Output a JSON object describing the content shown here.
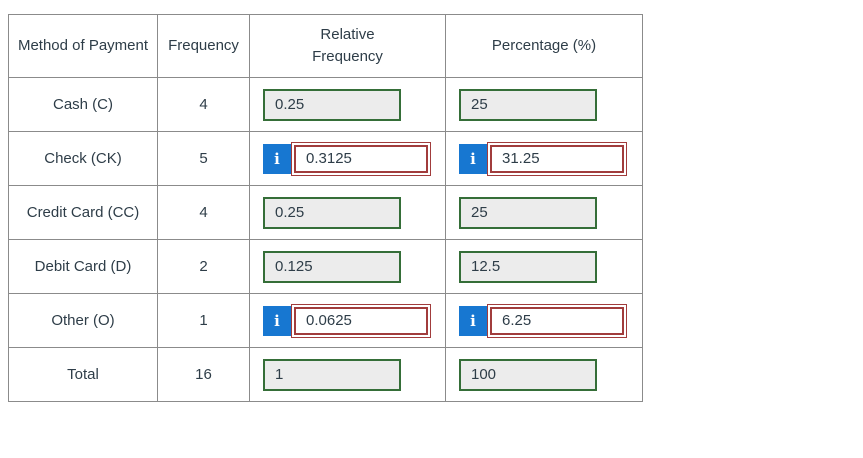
{
  "colors": {
    "table_border": "#8b8b8b",
    "text": "#2e3d48",
    "disabled_fill": "#ececec",
    "disabled_border_green": "#356e38",
    "info_blue": "#1777d1",
    "error_red": "#a13c3c"
  },
  "icons": {
    "info_label": "i"
  },
  "table": {
    "headers": {
      "method": "Method of Payment",
      "frequency": "Frequency",
      "relative_frequency": "Relative\nFrequency",
      "percentage": "Percentage (%)"
    },
    "rows": [
      {
        "method": "Cash (C)",
        "frequency": "4",
        "rel": {
          "value": "0.25",
          "state": "disabled"
        },
        "pct": {
          "value": "25",
          "state": "disabled"
        }
      },
      {
        "method": "Check (CK)",
        "frequency": "5",
        "rel": {
          "value": "0.3125",
          "state": "info"
        },
        "pct": {
          "value": "31.25",
          "state": "info"
        }
      },
      {
        "method": "Credit Card (CC)",
        "frequency": "4",
        "rel": {
          "value": "0.25",
          "state": "disabled"
        },
        "pct": {
          "value": "25",
          "state": "disabled"
        }
      },
      {
        "method": "Debit Card (D)",
        "frequency": "2",
        "rel": {
          "value": "0.125",
          "state": "disabled"
        },
        "pct": {
          "value": "12.5",
          "state": "disabled"
        }
      },
      {
        "method": "Other (O)",
        "frequency": "1",
        "rel": {
          "value": "0.0625",
          "state": "info"
        },
        "pct": {
          "value": "6.25",
          "state": "info"
        }
      },
      {
        "method": "Total",
        "frequency": "16",
        "rel": {
          "value": "1",
          "state": "disabled"
        },
        "pct": {
          "value": "100",
          "state": "disabled"
        }
      }
    ]
  }
}
